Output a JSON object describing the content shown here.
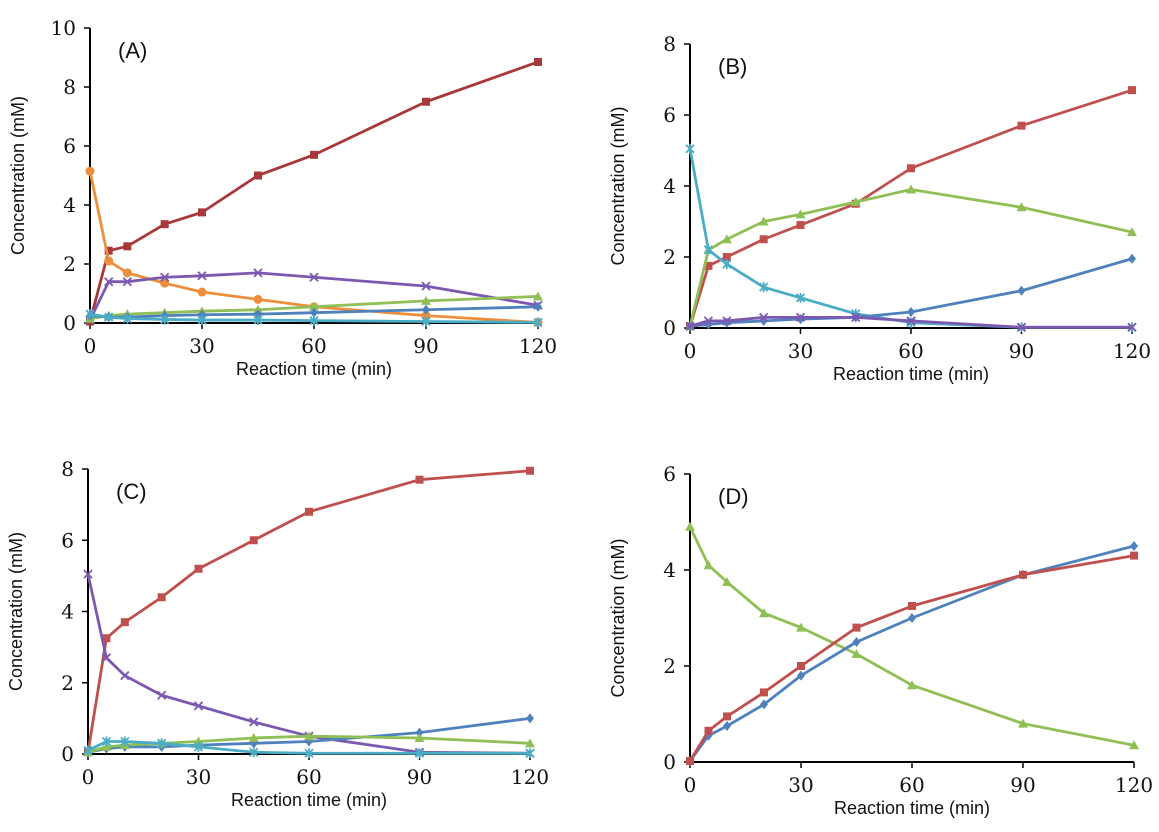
{
  "colors": {
    "red": "#c0504d",
    "darkred": "#a8383a",
    "green": "#8fbf55",
    "blue": "#4f81bd",
    "purple": "#7c58b0",
    "cyan": "#4bacc6",
    "orange": "#ec8f3c"
  },
  "chart_data": [
    {
      "type": "line",
      "panel_label": "(A)",
      "xlabel": "Reaction time (min)",
      "ylabel": "Concentration (mM)",
      "xlim": [
        0,
        120
      ],
      "ylim": [
        0,
        10
      ],
      "xticks": [
        "0",
        "30",
        "60",
        "90",
        "120"
      ],
      "yticks": [
        "0",
        "2",
        "4",
        "6",
        "8",
        "10"
      ],
      "x": [
        0,
        5,
        10,
        20,
        30,
        45,
        60,
        90,
        120
      ],
      "series": [
        {
          "color": "#a8383a",
          "marker": "square",
          "values": [
            0.05,
            2.45,
            2.6,
            3.35,
            3.75,
            5.0,
            5.7,
            7.5,
            8.85
          ]
        },
        {
          "color": "#ec8f3c",
          "marker": "circle",
          "values": [
            5.15,
            2.1,
            1.7,
            1.35,
            1.05,
            0.8,
            0.55,
            0.25,
            0.02
          ]
        },
        {
          "color": "#7c58b0",
          "marker": "x",
          "values": [
            0.1,
            1.4,
            1.4,
            1.55,
            1.6,
            1.7,
            1.55,
            1.25,
            0.6
          ]
        },
        {
          "color": "#8fbf55",
          "marker": "triangle",
          "values": [
            0.15,
            0.25,
            0.3,
            0.35,
            0.4,
            0.45,
            0.55,
            0.75,
            0.9
          ]
        },
        {
          "color": "#4f81bd",
          "marker": "diamond",
          "values": [
            0.25,
            0.2,
            0.2,
            0.25,
            0.28,
            0.3,
            0.35,
            0.45,
            0.55
          ]
        },
        {
          "color": "#4bacc6",
          "marker": "star",
          "values": [
            0.3,
            0.2,
            0.15,
            0.12,
            0.1,
            0.1,
            0.08,
            0.05,
            0.02
          ]
        }
      ]
    },
    {
      "type": "line",
      "panel_label": "(B)",
      "xlabel": "Reaction time (min)",
      "ylabel": "Concentration (mM)",
      "xlim": [
        0,
        120
      ],
      "ylim": [
        0,
        8
      ],
      "xticks": [
        "0",
        "30",
        "60",
        "90",
        "120"
      ],
      "yticks": [
        "0",
        "2",
        "4",
        "6",
        "8"
      ],
      "x": [
        0,
        5,
        10,
        20,
        30,
        45,
        60,
        90,
        120
      ],
      "series": [
        {
          "color": "#c0504d",
          "marker": "square",
          "values": [
            0.05,
            1.75,
            2.0,
            2.5,
            2.9,
            3.5,
            4.5,
            5.7,
            6.7
          ]
        },
        {
          "color": "#8fbf55",
          "marker": "triangle",
          "values": [
            0.05,
            2.2,
            2.5,
            3.0,
            3.2,
            3.55,
            3.9,
            3.4,
            2.7
          ]
        },
        {
          "color": "#4bacc6",
          "marker": "star",
          "values": [
            5.05,
            2.2,
            1.8,
            1.15,
            0.85,
            0.4,
            0.15,
            0.02,
            0.02
          ]
        },
        {
          "color": "#4f81bd",
          "marker": "diamond",
          "values": [
            0.05,
            0.1,
            0.15,
            0.2,
            0.25,
            0.3,
            0.45,
            1.05,
            1.95
          ]
        },
        {
          "color": "#7c58b0",
          "marker": "x",
          "values": [
            0.05,
            0.2,
            0.2,
            0.3,
            0.3,
            0.3,
            0.2,
            0.02,
            0.02
          ]
        }
      ]
    },
    {
      "type": "line",
      "panel_label": "(C)",
      "xlabel": "Reaction time (min)",
      "ylabel": "Concentration (mM)",
      "xlim": [
        0,
        120
      ],
      "ylim": [
        0,
        8
      ],
      "xticks": [
        "0",
        "30",
        "60",
        "90",
        "120"
      ],
      "yticks": [
        "0",
        "2",
        "4",
        "6",
        "8"
      ],
      "x": [
        0,
        5,
        10,
        20,
        30,
        45,
        60,
        90,
        120
      ],
      "series": [
        {
          "color": "#c0504d",
          "marker": "square",
          "values": [
            0.05,
            3.25,
            3.7,
            4.4,
            5.2,
            6.0,
            6.8,
            7.7,
            7.95
          ]
        },
        {
          "color": "#7c58b0",
          "marker": "x",
          "values": [
            5.05,
            2.7,
            2.2,
            1.65,
            1.35,
            0.9,
            0.5,
            0.05,
            0.02
          ]
        },
        {
          "color": "#4f81bd",
          "marker": "diamond",
          "values": [
            0.05,
            0.15,
            0.2,
            0.2,
            0.25,
            0.3,
            0.35,
            0.6,
            1.0
          ]
        },
        {
          "color": "#8fbf55",
          "marker": "triangle",
          "values": [
            0.05,
            0.2,
            0.25,
            0.3,
            0.35,
            0.45,
            0.5,
            0.45,
            0.3
          ]
        },
        {
          "color": "#4bacc6",
          "marker": "star",
          "values": [
            0.1,
            0.35,
            0.35,
            0.3,
            0.2,
            0.05,
            0.02,
            0.02,
            0.02
          ]
        }
      ]
    },
    {
      "type": "line",
      "panel_label": "(D)",
      "xlabel": "Reaction time (min)",
      "ylabel": "Concentration (mM)",
      "xlim": [
        0,
        120
      ],
      "ylim": [
        0,
        6
      ],
      "xticks": [
        "0",
        "30",
        "60",
        "90",
        "120"
      ],
      "yticks": [
        "0",
        "2",
        "4",
        "6"
      ],
      "x": [
        0,
        5,
        10,
        20,
        30,
        45,
        60,
        90,
        120
      ],
      "series": [
        {
          "color": "#8fbf55",
          "marker": "triangle",
          "values": [
            4.9,
            4.1,
            3.75,
            3.1,
            2.8,
            2.25,
            1.6,
            0.8,
            0.35
          ]
        },
        {
          "color": "#4f81bd",
          "marker": "diamond",
          "values": [
            0.02,
            0.55,
            0.75,
            1.2,
            1.8,
            2.5,
            3.0,
            3.9,
            4.5
          ]
        },
        {
          "color": "#c0504d",
          "marker": "square",
          "values": [
            0.02,
            0.65,
            0.95,
            1.45,
            2.0,
            2.8,
            3.25,
            3.9,
            4.3
          ]
        }
      ]
    }
  ]
}
